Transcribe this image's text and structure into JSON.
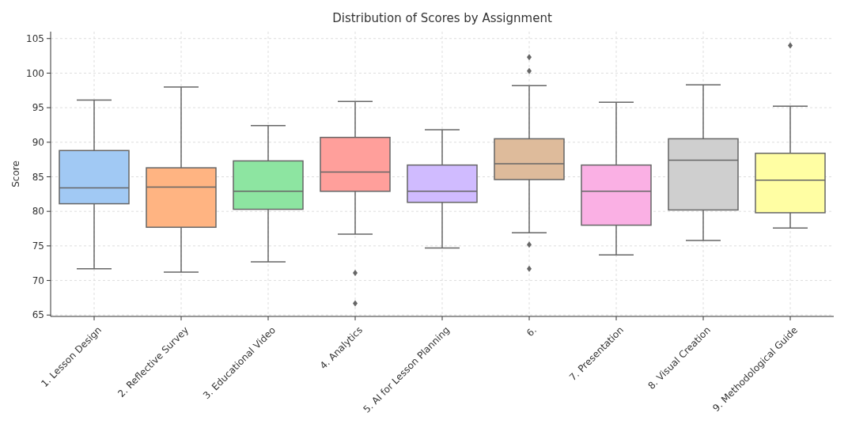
{
  "chart_data": {
    "type": "box",
    "title": "Distribution of Scores by Assignment",
    "ylabel": "Score",
    "categories": [
      "1. Lesson Design",
      "2. Reflective Survey",
      "3. Educational Video",
      "4. Analytics",
      "5. AI for Lesson Planning",
      "6.",
      "7. Presentation",
      "8. Visual Creation",
      "9. Methodological Guide"
    ],
    "colors": [
      "#a1c9f4",
      "#ffb482",
      "#8de5a1",
      "#ff9f9b",
      "#d0bbff",
      "#debb9b",
      "#fab0e4",
      "#cfcfcf",
      "#fffea3"
    ],
    "boxes": [
      {
        "low": 71.7,
        "q1": 81.1,
        "median": 83.4,
        "q3": 88.8,
        "high": 96.1
      },
      {
        "low": 71.2,
        "q1": 77.7,
        "median": 83.5,
        "q3": 86.3,
        "high": 98.0
      },
      {
        "low": 72.7,
        "q1": 80.3,
        "median": 82.9,
        "q3": 87.3,
        "high": 92.4
      },
      {
        "low": 76.7,
        "q1": 82.9,
        "median": 85.7,
        "q3": 90.7,
        "high": 95.9,
        "outliers": [
          71.1,
          66.7
        ]
      },
      {
        "low": 74.7,
        "q1": 81.3,
        "median": 82.9,
        "q3": 86.7,
        "high": 91.8
      },
      {
        "low": 76.9,
        "q1": 84.6,
        "median": 86.9,
        "q3": 90.5,
        "high": 98.2,
        "outliers": [
          102.3,
          100.3,
          75.2,
          71.7
        ]
      },
      {
        "low": 73.7,
        "q1": 78.0,
        "median": 82.9,
        "q3": 86.7,
        "high": 95.8
      },
      {
        "low": 75.8,
        "q1": 80.2,
        "median": 87.4,
        "q3": 90.5,
        "high": 98.3
      },
      {
        "low": 77.6,
        "q1": 79.8,
        "median": 84.5,
        "q3": 88.4,
        "high": 95.2,
        "outliers": [
          104.0
        ]
      }
    ],
    "ylim": [
      64.8,
      106
    ],
    "yticks": [
      65,
      70,
      75,
      80,
      85,
      90,
      95,
      100,
      105
    ],
    "grid": true
  }
}
